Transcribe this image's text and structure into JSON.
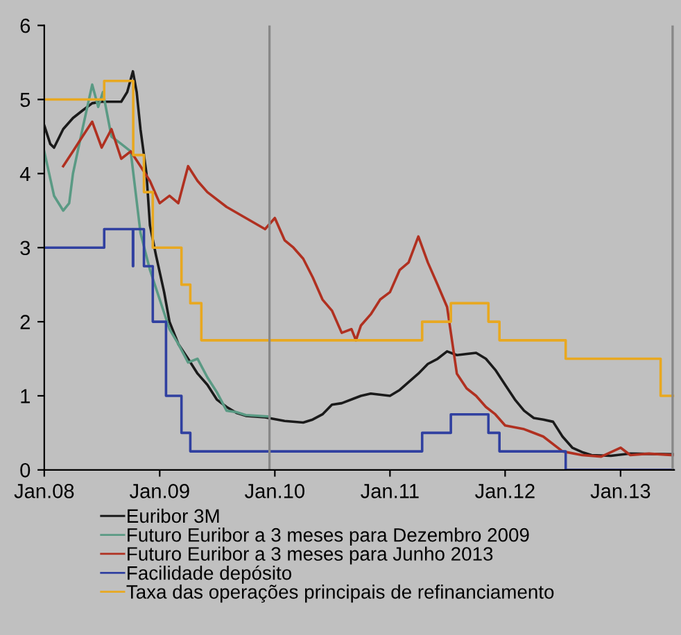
{
  "chart_data": {
    "type": "line",
    "xlim": [
      "2008-01-01",
      "2013-06-20"
    ],
    "xticks": [
      {
        "value": "2008-01-01",
        "label": "Jan.08"
      },
      {
        "value": "2009-01-01",
        "label": "Jan.09"
      },
      {
        "value": "2010-01-01",
        "label": "Jan.10"
      },
      {
        "value": "2011-01-01",
        "label": "Jan.11"
      },
      {
        "value": "2012-01-01",
        "label": "Jan.12"
      },
      {
        "value": "2013-01-01",
        "label": "Jan.13"
      }
    ],
    "ylim": [
      0,
      6
    ],
    "yticks": [
      0,
      1,
      2,
      3,
      4,
      5,
      6
    ],
    "grid": false,
    "legend": "bottom",
    "ref_lines": [
      {
        "axis": "x",
        "value": "2009-12-15",
        "color": "#888888"
      },
      {
        "axis": "x",
        "value": "2013-06-15",
        "color": "#888888"
      }
    ],
    "series": [
      {
        "name": "Euribor 3M",
        "color": "#1a1a1a",
        "x": [
          "2008-01-01",
          "2008-01-20",
          "2008-02-01",
          "2008-03-01",
          "2008-04-01",
          "2008-05-01",
          "2008-06-01",
          "2008-07-01",
          "2008-09-01",
          "2008-09-20",
          "2008-10-08",
          "2008-10-20",
          "2008-11-01",
          "2008-11-20",
          "2008-12-01",
          "2008-12-20",
          "2009-01-15",
          "2009-02-01",
          "2009-03-01",
          "2009-04-01",
          "2009-05-01",
          "2009-06-01",
          "2009-07-01",
          "2009-08-01",
          "2009-09-01",
          "2009-10-01",
          "2009-12-01",
          "2010-02-01",
          "2010-04-01",
          "2010-05-01",
          "2010-06-01",
          "2010-07-01",
          "2010-08-01",
          "2010-10-01",
          "2010-11-01",
          "2011-01-01",
          "2011-02-01",
          "2011-04-01",
          "2011-05-01",
          "2011-06-01",
          "2011-07-01",
          "2011-08-01",
          "2011-10-01",
          "2011-11-01",
          "2011-12-01",
          "2012-01-01",
          "2012-02-01",
          "2012-03-01",
          "2012-04-01",
          "2012-05-01",
          "2012-06-01",
          "2012-07-01",
          "2012-08-01",
          "2012-09-01",
          "2012-10-01",
          "2012-12-01",
          "2013-02-01",
          "2013-06-15"
        ],
        "values": [
          4.65,
          4.4,
          4.35,
          4.6,
          4.75,
          4.85,
          4.95,
          4.97,
          4.97,
          5.1,
          5.38,
          5.1,
          4.6,
          4.0,
          3.3,
          2.9,
          2.4,
          2.0,
          1.7,
          1.5,
          1.3,
          1.15,
          0.95,
          0.85,
          0.77,
          0.73,
          0.71,
          0.66,
          0.64,
          0.68,
          0.75,
          0.88,
          0.9,
          1.0,
          1.03,
          1.0,
          1.08,
          1.3,
          1.43,
          1.5,
          1.6,
          1.55,
          1.58,
          1.5,
          1.35,
          1.15,
          0.95,
          0.8,
          0.7,
          0.68,
          0.65,
          0.45,
          0.3,
          0.24,
          0.2,
          0.19,
          0.22,
          0.21
        ]
      },
      {
        "name": "Futuro Euribor a 3 meses para Dezembro 2009",
        "color": "#5a9a84",
        "x": [
          "2008-01-01",
          "2008-02-01",
          "2008-03-01",
          "2008-03-20",
          "2008-04-01",
          "2008-05-01",
          "2008-06-01",
          "2008-06-20",
          "2008-07-05",
          "2008-08-01",
          "2008-09-01",
          "2008-10-01",
          "2008-11-01",
          "2008-12-01",
          "2009-01-01",
          "2009-02-01",
          "2009-03-01",
          "2009-04-01",
          "2009-05-01",
          "2009-06-01",
          "2009-07-01",
          "2009-08-01",
          "2009-09-01",
          "2009-10-01",
          "2009-12-15"
        ],
        "values": [
          4.3,
          3.7,
          3.5,
          3.6,
          4.0,
          4.6,
          5.2,
          4.9,
          5.1,
          4.5,
          4.4,
          4.3,
          3.2,
          2.7,
          2.3,
          1.9,
          1.7,
          1.45,
          1.5,
          1.25,
          1.05,
          0.8,
          0.78,
          0.74,
          0.72
        ]
      },
      {
        "name": "Futuro Euribor a 3 meses para Junho 2013",
        "color": "#b03020",
        "x": [
          "2008-03-01",
          "2008-04-01",
          "2008-05-01",
          "2008-06-01",
          "2008-07-01",
          "2008-08-01",
          "2008-09-01",
          "2008-10-01",
          "2008-11-01",
          "2008-12-01",
          "2009-01-01",
          "2009-02-01",
          "2009-03-01",
          "2009-04-01",
          "2009-05-01",
          "2009-06-01",
          "2009-08-01",
          "2009-10-01",
          "2009-12-01",
          "2010-01-01",
          "2010-02-01",
          "2010-03-01",
          "2010-04-01",
          "2010-05-01",
          "2010-06-01",
          "2010-07-01",
          "2010-08-01",
          "2010-09-01",
          "2010-09-15",
          "2010-10-01",
          "2010-11-01",
          "2010-12-01",
          "2011-01-01",
          "2011-02-01",
          "2011-03-01",
          "2011-04-01",
          "2011-05-01",
          "2011-06-01",
          "2011-07-01",
          "2011-08-01",
          "2011-09-01",
          "2011-10-01",
          "2011-11-01",
          "2011-12-01",
          "2012-01-01",
          "2012-03-01",
          "2012-05-01",
          "2012-07-01",
          "2012-09-01",
          "2012-11-01",
          "2013-01-01",
          "2013-02-01",
          "2013-04-01",
          "2013-06-15"
        ],
        "values": [
          4.1,
          4.3,
          4.5,
          4.7,
          4.35,
          4.6,
          4.2,
          4.3,
          4.1,
          3.9,
          3.6,
          3.7,
          3.6,
          4.1,
          3.9,
          3.75,
          3.55,
          3.4,
          3.25,
          3.4,
          3.1,
          3.0,
          2.85,
          2.6,
          2.3,
          2.15,
          1.85,
          1.9,
          1.75,
          1.95,
          2.1,
          2.3,
          2.4,
          2.7,
          2.8,
          3.15,
          2.8,
          2.5,
          2.2,
          1.3,
          1.1,
          1.0,
          0.85,
          0.75,
          0.6,
          0.55,
          0.45,
          0.25,
          0.2,
          0.18,
          0.3,
          0.2,
          0.22,
          0.2
        ]
      },
      {
        "name": "Facilidade depósito",
        "type": "step",
        "color": "#3040a0",
        "x": [
          "2008-01-01",
          "2008-07-09",
          "2008-10-08",
          "2008-10-09",
          "2008-11-12",
          "2008-12-10",
          "2009-01-21",
          "2009-03-11",
          "2009-04-08",
          "2011-04-13",
          "2011-07-13",
          "2011-11-09",
          "2011-12-14",
          "2012-07-11",
          "2013-06-20"
        ],
        "values": [
          3.0,
          3.25,
          2.75,
          3.25,
          2.75,
          2.0,
          1.0,
          0.5,
          0.25,
          0.5,
          0.75,
          0.5,
          0.25,
          0.0,
          0.0
        ]
      },
      {
        "name": "Taxa das operações principais de refinanciamento",
        "type": "step",
        "color": "#e8a820",
        "x": [
          "2008-01-01",
          "2008-07-09",
          "2008-10-09",
          "2008-11-12",
          "2008-12-10",
          "2009-03-11",
          "2009-04-08",
          "2009-05-13",
          "2011-04-13",
          "2011-07-13",
          "2011-11-09",
          "2011-12-14",
          "2012-07-11",
          "2013-05-08",
          "2013-06-20"
        ],
        "values": [
          5.0,
          5.25,
          4.25,
          3.75,
          3.0,
          2.5,
          2.25,
          1.75,
          2.0,
          2.25,
          2.0,
          1.75,
          1.5,
          1.0,
          1.0
        ]
      }
    ]
  }
}
